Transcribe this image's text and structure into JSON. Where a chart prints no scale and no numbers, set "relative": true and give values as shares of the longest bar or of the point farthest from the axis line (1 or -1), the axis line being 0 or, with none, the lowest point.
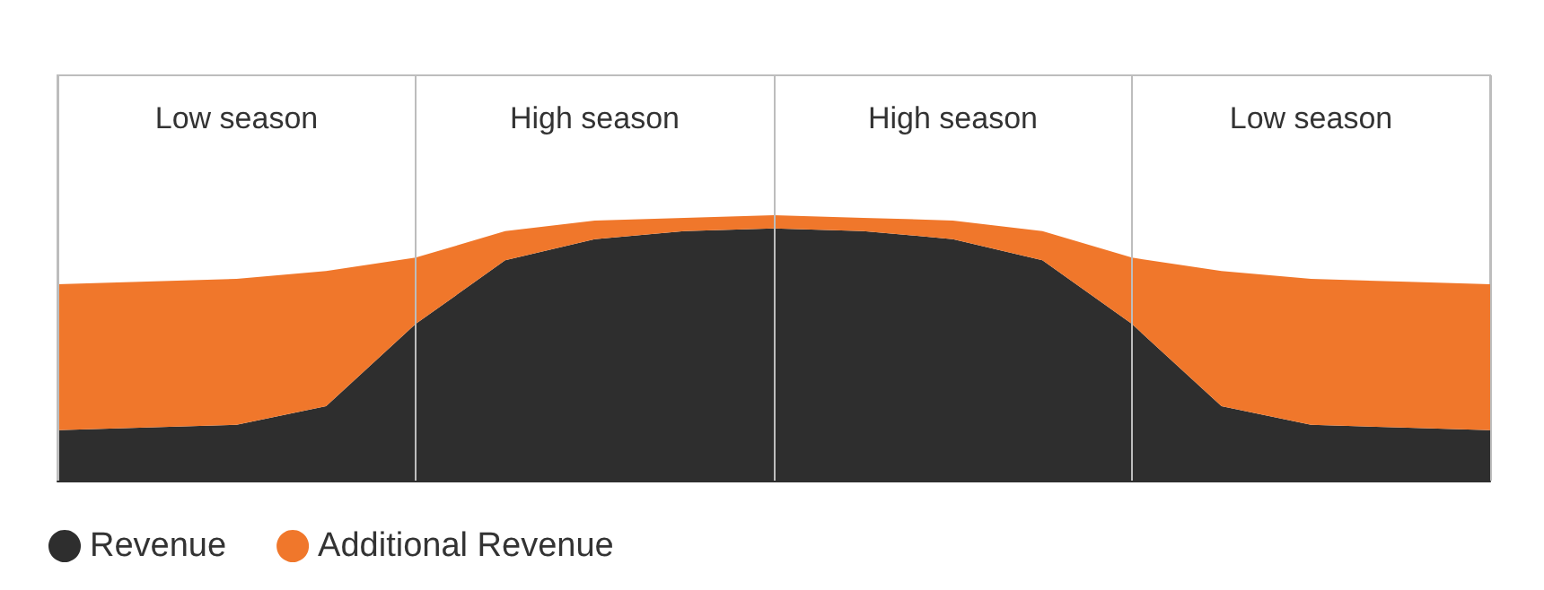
{
  "chart_data": {
    "type": "area",
    "relative": true,
    "stacked": true,
    "categories": [
      null,
      null,
      null,
      null,
      null,
      null,
      null,
      null,
      null,
      null,
      null,
      null,
      null,
      null,
      null,
      null,
      null
    ],
    "series": [
      {
        "name": "Revenue",
        "color": "#2e2e2e",
        "values": [
          0.19,
          0.2,
          0.21,
          0.28,
          0.59,
          0.83,
          0.91,
          0.94,
          0.95,
          0.94,
          0.91,
          0.83,
          0.59,
          0.28,
          0.21,
          0.2,
          0.19
        ]
      },
      {
        "name": "Additional Revenue",
        "color": "#f0772b",
        "values": [
          0.55,
          0.55,
          0.55,
          0.51,
          0.25,
          0.11,
          0.07,
          0.05,
          0.05,
          0.05,
          0.07,
          0.11,
          0.25,
          0.51,
          0.55,
          0.55,
          0.55
        ]
      }
    ],
    "annotations": [
      "Low season",
      "High season",
      "High season",
      "Low season"
    ],
    "legend": "bottom left",
    "grid": "x",
    "marker": "none"
  }
}
